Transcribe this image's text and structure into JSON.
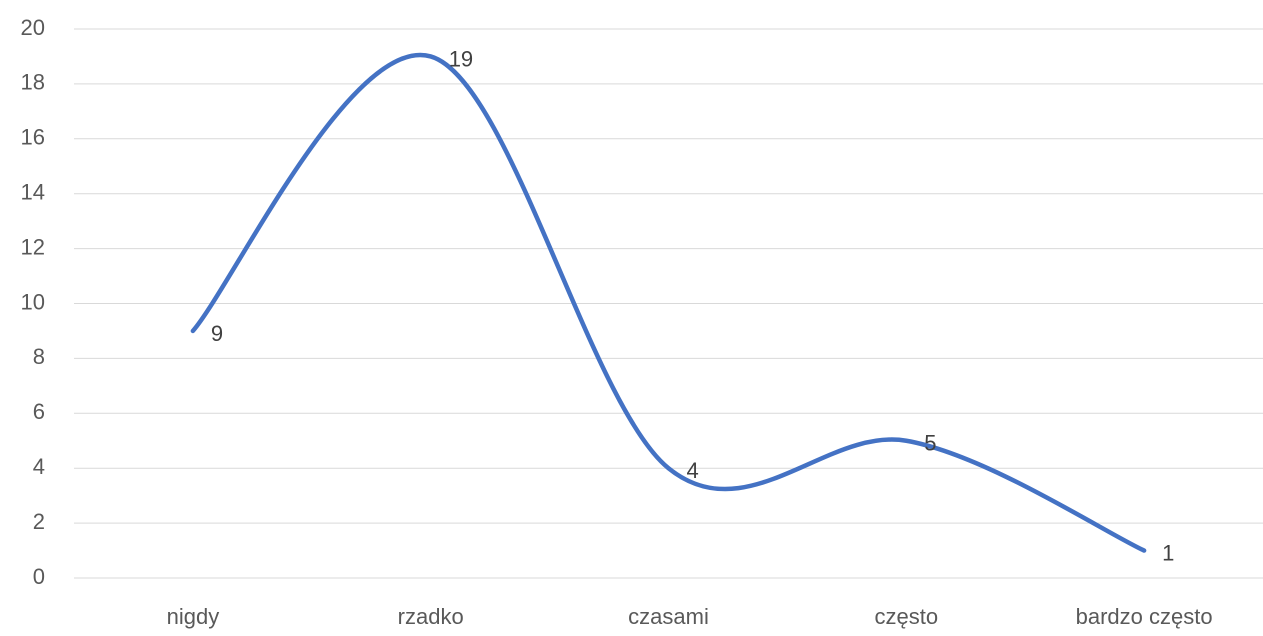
{
  "chart_data": {
    "type": "line",
    "categories": [
      "nigdy",
      "rzadko",
      "czasami",
      "często",
      "bardzo często"
    ],
    "values": [
      9,
      19,
      4,
      5,
      1
    ],
    "color": "#4472c4",
    "smooth": true,
    "ylim": [
      0,
      20
    ],
    "yticks": [
      0,
      2,
      4,
      6,
      8,
      10,
      12,
      14,
      16,
      18,
      20
    ],
    "grid": true
  }
}
